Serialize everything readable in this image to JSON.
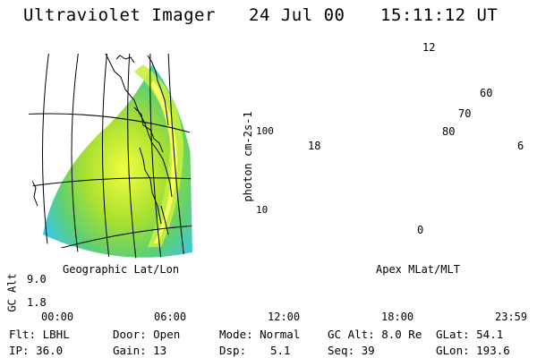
{
  "header": {
    "title": "Ultraviolet Imager",
    "date": "24 Jul 00",
    "time": "15:11:12 UT"
  },
  "colorbar": {
    "unit_label": "photon cm-2s-1",
    "ticks": [
      "100",
      "10"
    ],
    "colors": [
      "#101030",
      "#300040",
      "#700060",
      "#c00040",
      "#f03030",
      "#ff7000",
      "#ffb000",
      "#ffe000",
      "#f0ff30",
      "#c8f030",
      "#80e020",
      "#40c060",
      "#30c0d0",
      "#80e0f0",
      "#c8f0f8",
      "#f4ffff"
    ]
  },
  "geo_panel": {
    "caption": "Geographic Lat/Lon"
  },
  "polar_panel": {
    "caption": "Apex MLat/MLT",
    "lat_labels": [
      "60",
      "70",
      "80"
    ],
    "mlt_labels": {
      "top": "12",
      "left": "18",
      "right": "6",
      "bottom": "0"
    }
  },
  "timeline": {
    "axis_label": "GC Alt",
    "y_ticks": [
      "9.0",
      "1.8"
    ],
    "x_ticks": [
      "00:00",
      "06:00",
      "12:00",
      "18:00",
      "23:59"
    ],
    "current_marker_color": "#e00000"
  },
  "info": {
    "filter": "Flt: LBHL",
    "ip": "IP: 36.0",
    "door": "Door: Open",
    "gain": "Gain: 13",
    "mode": "Mode: Normal",
    "dsp": "Dsp:",
    "dsp_value": "5.1",
    "gc_alt": "GC Alt: 8.0 Re",
    "seq": "Seq: 39",
    "glat": "GLat: 54.1",
    "glon": "GLon: 193.6"
  }
}
